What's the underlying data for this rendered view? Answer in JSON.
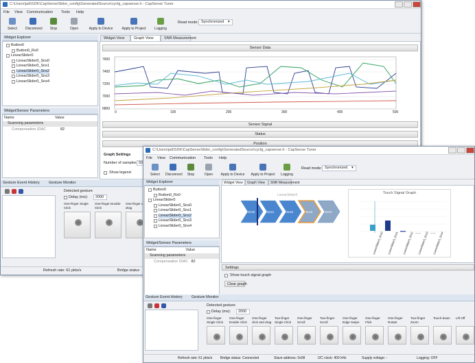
{
  "window1": {
    "title": "C:\\Users\\jatt\\SDK\\CapSenseSlider_config\\GeneratedSource\\cycfg_capsense.h - CapSense Tuner",
    "menu": [
      "File",
      "View",
      "Communication",
      "Tools",
      "Help"
    ],
    "toolbar": [
      "Select",
      "Disconnect",
      "Stop",
      "Open",
      "Apply to Device",
      "Apply to Project",
      "Logging"
    ],
    "read_mode_label": "Read mode:",
    "read_mode": "Synchronized",
    "widget_explorer": {
      "title": "Widget Explorer",
      "items": [
        "Button0",
        "Button0_Rx0",
        "LinearSlider0",
        "LinearSlider0_Sns0",
        "LinearSlider0_Sns1",
        "LinearSlider0_Sns2",
        "LinearSlider0_Sns3",
        "LinearSlider0_Sns4"
      ]
    },
    "tabs": [
      "Widget View",
      "Graph View",
      "SNR Measurement"
    ],
    "sensor_data": {
      "title": "Sensor Data",
      "yticks": [
        7600,
        7400,
        7200,
        7000,
        6800
      ],
      "xticks": [
        0,
        100,
        200,
        300,
        400,
        500
      ]
    },
    "sections": [
      "Sensor Signal",
      "Status",
      "Position"
    ],
    "graph_settings": {
      "title": "Graph Settings",
      "samples_label": "Number of samples:",
      "samples": 50,
      "show_legend": "Show legend"
    },
    "params": {
      "title": "Widget/Sensor Parameters",
      "columns": [
        "Name",
        "Value"
      ],
      "group": "Scanning parameters",
      "row": [
        "Compensation IDAC",
        82
      ]
    },
    "gesture": {
      "tabs": [
        "Gesture Event History",
        "Gesture Monitor"
      ],
      "detected": "Detected gesture",
      "delay_label": "Delay (ms):",
      "delay": 2000,
      "items": [
        "One-finger Single Click",
        "One-finger Double Click",
        "One-finger click and drag"
      ]
    },
    "status": [
      "Refresh rate:  61 pkts/s",
      "Bridge status"
    ]
  },
  "window2": {
    "title": "C:\\Users\\jatt\\SDK\\CapSenseSlider_config\\GeneratedSource\\cycfg_capsense.h - CapSense Tuner",
    "menu": [
      "File",
      "View",
      "Communication",
      "Tools",
      "Help"
    ],
    "toolbar": [
      "Select",
      "Disconnect",
      "Stop",
      "Open",
      "Apply to Device",
      "Apply to Project",
      "Logging"
    ],
    "read_mode_label": "Read mode:",
    "read_mode": "Synchronized",
    "widget_explorer": {
      "title": "Widget Explorer",
      "items": [
        "Button0",
        "Button0_Rx0",
        "LinearSlider0",
        "LinearSlider0_Sns0",
        "LinearSlider0_Sns1",
        "LinearSlider0_Sns2",
        "LinearSlider0_Sns3",
        "LinearSlider0_Sns4"
      ]
    },
    "tabs": [
      "Widget View",
      "Graph View",
      "SNR Measurement"
    ],
    "slider_label": "LinearSlider0",
    "slider_segments": [
      "Sns0",
      "Sns1",
      "Sns2",
      "Sns3",
      "Sns4"
    ],
    "touch_graph": {
      "title": "Touch Signal Graph",
      "categories": [
        "LinearSlider0_Sns0",
        "LinearSlider0_Sns1",
        "LinearSlider0_Sns2",
        "LinearSlider0_Sns3",
        "LinearSlider0_Sns4"
      ]
    },
    "params": {
      "title": "Widget/Sensor Parameters",
      "columns": [
        "Name",
        "Value"
      ],
      "group": "Scanning parameters",
      "row": [
        "Compensation IDAC",
        82
      ]
    },
    "settings": {
      "title": "Settings",
      "show_graph": "Show touch signal graph",
      "clear": "Clear graph"
    },
    "gesture": {
      "tabs": [
        "Gesture Event History",
        "Gesture Monitor"
      ],
      "detected": "Detected gesture",
      "delay_label": "Delay (ms):",
      "delay": 2000,
      "items": [
        "One-finger Single Click",
        "One-finger Double Click",
        "One-finger click and drag",
        "Two-finger Single Click",
        "One-finger Scroll",
        "Two-finger Scroll",
        "One-finger Edge Swipe",
        "One-finger Flick",
        "One-finger Rotate",
        "Two-finger Zoom",
        "Touch-down",
        "Lift Off"
      ]
    },
    "status": [
      "Refresh rate:  61 pkts/s",
      "Bridge status:  Connected",
      "Slave address:  0x08",
      "I2C clock:  400 kHz",
      "Supply voltage:  -",
      "Logging:  OFF"
    ]
  }
}
